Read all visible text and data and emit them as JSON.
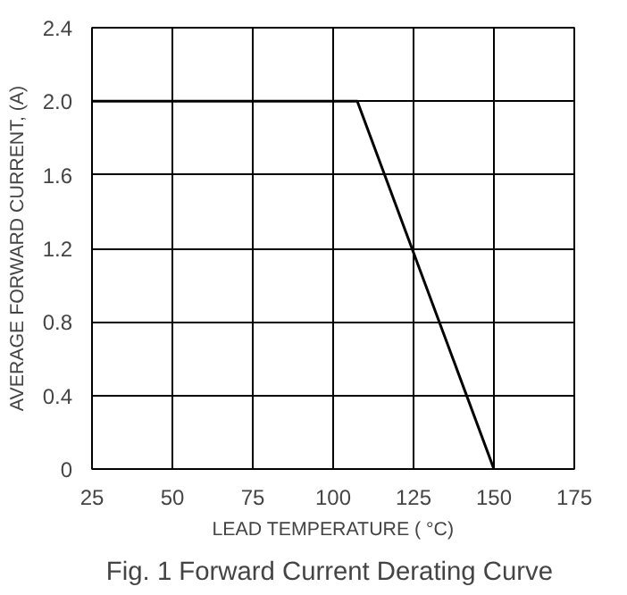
{
  "chart_data": {
    "type": "line",
    "title": "Fig. 1  Forward Current Derating Curve",
    "xlabel": "LEAD TEMPERATURE ( °C)",
    "ylabel": "AVERAGE FORWARD CURRENT, (A)",
    "series": [
      {
        "color": "#000000",
        "x": [
          25,
          107.5,
          150
        ],
        "values": [
          2.0,
          2.0,
          0
        ]
      }
    ],
    "xlim": [
      25,
      175
    ],
    "xticks": [
      25,
      50,
      75,
      100,
      125,
      150,
      175
    ],
    "ylim": [
      0,
      2.4
    ],
    "yticks": [
      {
        "value": 0,
        "label": "0"
      },
      {
        "value": 0.4,
        "label": "0.4"
      },
      {
        "value": 0.8,
        "label": "0.8"
      },
      {
        "value": 1.2,
        "label": "1.2"
      },
      {
        "value": 1.6,
        "label": "1.6"
      },
      {
        "value": 2.0,
        "label": "2.0"
      },
      {
        "value": 2.4,
        "label": "2.4"
      }
    ],
    "grid": true,
    "marker": "none",
    "line_style": "solid"
  }
}
